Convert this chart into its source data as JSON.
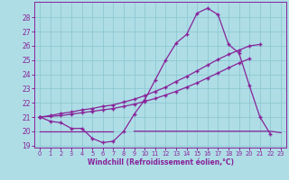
{
  "bg_color": "#aedde6",
  "line_color": "#882299",
  "grid_color": "#8ec8d2",
  "xlabel": "Windchill (Refroidissement éolien,°C)",
  "xlim_min": -0.5,
  "xlim_max": 23.5,
  "ylim_min": 18.85,
  "ylim_max": 29.1,
  "yticks": [
    19,
    20,
    21,
    22,
    23,
    24,
    25,
    26,
    27,
    28
  ],
  "xticks": [
    0,
    1,
    2,
    3,
    4,
    5,
    6,
    7,
    8,
    9,
    10,
    11,
    12,
    13,
    14,
    15,
    16,
    17,
    18,
    19,
    20,
    21,
    22,
    23
  ],
  "curve_wavy_x": [
    0,
    1,
    2,
    3,
    4,
    5,
    6,
    7,
    8,
    9,
    10,
    11,
    12,
    13,
    14,
    15,
    16,
    17,
    18,
    19,
    20,
    21,
    22
  ],
  "curve_wavy_y": [
    21.0,
    20.7,
    20.6,
    20.2,
    20.2,
    19.5,
    19.2,
    19.3,
    20.0,
    21.2,
    22.2,
    23.6,
    25.0,
    26.2,
    26.8,
    28.3,
    28.65,
    28.2,
    26.1,
    25.5,
    23.2,
    21.0,
    19.8
  ],
  "curve_diag1_x": [
    0,
    1,
    2,
    3,
    4,
    5,
    6,
    7,
    8,
    9,
    10,
    11,
    12,
    13,
    14,
    15,
    16,
    17,
    18,
    19,
    20,
    21
  ],
  "curve_diag1_y": [
    21.0,
    21.1,
    21.25,
    21.35,
    21.5,
    21.6,
    21.75,
    21.85,
    22.05,
    22.25,
    22.5,
    22.8,
    23.1,
    23.5,
    23.85,
    24.25,
    24.65,
    25.05,
    25.4,
    25.7,
    26.0,
    26.1
  ],
  "curve_diag2_x": [
    0,
    1,
    2,
    3,
    4,
    5,
    6,
    7,
    8,
    9,
    10,
    11,
    12,
    13,
    14,
    15,
    16,
    17,
    18,
    19,
    20
  ],
  "curve_diag2_y": [
    21.0,
    21.05,
    21.1,
    21.2,
    21.3,
    21.4,
    21.5,
    21.6,
    21.75,
    21.9,
    22.1,
    22.3,
    22.55,
    22.8,
    23.1,
    23.4,
    23.75,
    24.1,
    24.45,
    24.8,
    25.1
  ],
  "flat_seg1_x": [
    0,
    1,
    2,
    3,
    4,
    5,
    6,
    7
  ],
  "flat_seg1_y": [
    20.0,
    20.0,
    20.0,
    20.0,
    20.0,
    20.0,
    20.0,
    20.0
  ],
  "flat_seg2_x": [
    9,
    10,
    11,
    12,
    13,
    14,
    15,
    16,
    17,
    18,
    19,
    20,
    21,
    22,
    23
  ],
  "flat_seg2_y": [
    20.0,
    20.0,
    20.0,
    20.0,
    20.0,
    20.0,
    20.0,
    20.0,
    20.0,
    20.0,
    20.0,
    20.0,
    20.0,
    20.0,
    19.9
  ]
}
